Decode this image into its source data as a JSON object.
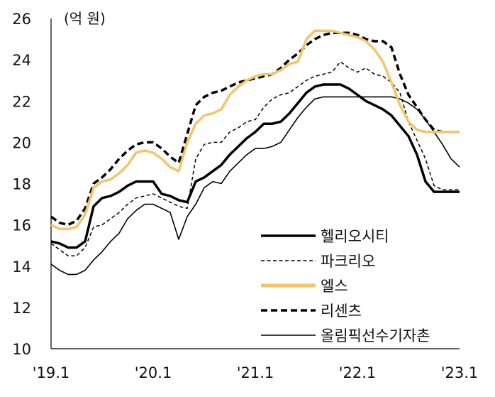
{
  "chart_data": {
    "type": "line",
    "unit_label": "(억 원)",
    "ylim": [
      10,
      26
    ],
    "yticks": [
      "26",
      "24",
      "22",
      "20",
      "18",
      "16",
      "14",
      "12",
      "10"
    ],
    "xticks": [
      "'19.1",
      "'20.1",
      "'21.1",
      "'22.1",
      "'23.1"
    ],
    "grid": false,
    "legend_position": "bottom-right",
    "x": [
      "2019-01",
      "2019-02",
      "2019-03",
      "2019-04",
      "2019-05",
      "2019-06",
      "2019-07",
      "2019-08",
      "2019-09",
      "2019-10",
      "2019-11",
      "2019-12",
      "2020-01",
      "2020-02",
      "2020-03",
      "2020-04",
      "2020-05",
      "2020-06",
      "2020-07",
      "2020-08",
      "2020-09",
      "2020-10",
      "2020-11",
      "2020-12",
      "2021-01",
      "2021-02",
      "2021-03",
      "2021-04",
      "2021-05",
      "2021-06",
      "2021-07",
      "2021-08",
      "2021-09",
      "2021-10",
      "2021-11",
      "2021-12",
      "2022-01",
      "2022-02",
      "2022-03",
      "2022-04",
      "2022-05",
      "2022-06",
      "2022-07",
      "2022-08",
      "2022-09",
      "2022-10",
      "2022-11",
      "2022-12",
      "2023-01"
    ],
    "series": [
      {
        "name": "헬리오시티",
        "color": "#000000",
        "style": "solid-thick",
        "values": [
          15.2,
          15.1,
          14.9,
          14.9,
          15.2,
          16.9,
          17.3,
          17.4,
          17.6,
          17.9,
          18.1,
          18.1,
          18.1,
          17.5,
          17.4,
          17.2,
          17.1,
          18.1,
          18.3,
          18.6,
          18.9,
          19.4,
          19.8,
          20.2,
          20.5,
          20.9,
          20.9,
          21.0,
          21.4,
          21.9,
          22.4,
          22.7,
          22.8,
          22.8,
          22.8,
          22.6,
          22.3,
          22.0,
          21.8,
          21.6,
          21.3,
          20.8,
          20.3,
          19.4,
          18.1,
          17.6,
          17.6,
          17.6,
          17.6
        ]
      },
      {
        "name": "파크리오",
        "color": "#000000",
        "style": "dashed-thin",
        "values": [
          15.1,
          14.8,
          14.5,
          14.5,
          14.9,
          15.9,
          16.0,
          16.3,
          16.6,
          17.0,
          17.3,
          17.4,
          17.5,
          17.3,
          17.1,
          16.9,
          16.8,
          19.2,
          19.9,
          20.0,
          20.0,
          20.5,
          20.7,
          21.0,
          21.1,
          21.7,
          22.1,
          22.3,
          22.4,
          22.7,
          23.0,
          23.2,
          23.3,
          23.4,
          23.9,
          23.6,
          23.4,
          23.6,
          23.3,
          23.2,
          22.9,
          22.4,
          21.0,
          20.1,
          19.2,
          17.9,
          17.7,
          17.7,
          17.7
        ]
      },
      {
        "name": "엘스",
        "color": "#F4C46A",
        "style": "solid-thick",
        "values": [
          16.0,
          15.8,
          15.8,
          15.9,
          16.5,
          17.8,
          18.1,
          18.2,
          18.5,
          18.9,
          19.5,
          19.6,
          19.5,
          19.2,
          18.8,
          18.6,
          20.0,
          20.9,
          21.3,
          21.4,
          21.6,
          22.3,
          22.7,
          23.0,
          23.2,
          23.3,
          23.3,
          23.5,
          23.8,
          23.9,
          25.0,
          25.4,
          25.4,
          25.4,
          25.3,
          25.2,
          25.1,
          24.9,
          24.5,
          23.9,
          22.9,
          21.8,
          21.0,
          20.6,
          20.5,
          20.5,
          20.5,
          20.5,
          20.5
        ]
      },
      {
        "name": "리센츠",
        "color": "#000000",
        "style": "dashed-thick",
        "values": [
          16.4,
          16.1,
          16.0,
          16.2,
          16.8,
          18.0,
          18.3,
          18.7,
          19.2,
          19.6,
          19.9,
          20.0,
          20.0,
          19.7,
          19.3,
          19.0,
          20.4,
          21.8,
          22.2,
          22.4,
          22.5,
          22.7,
          22.9,
          23.0,
          23.1,
          23.2,
          23.3,
          23.6,
          24.0,
          24.3,
          24.7,
          25.0,
          25.2,
          25.3,
          25.3,
          25.3,
          25.2,
          25.0,
          24.9,
          24.9,
          24.6,
          23.3,
          22.3,
          21.7,
          21.1,
          20.6,
          20.5,
          20.5,
          20.5
        ]
      },
      {
        "name": "올림픽선수기자촌",
        "color": "#000000",
        "style": "solid-thin",
        "values": [
          14.1,
          13.8,
          13.6,
          13.6,
          13.8,
          14.3,
          14.7,
          15.2,
          15.6,
          16.3,
          16.7,
          17.0,
          17.0,
          16.8,
          16.6,
          15.3,
          16.4,
          17.0,
          17.8,
          18.1,
          18.0,
          18.6,
          19.0,
          19.4,
          19.7,
          19.7,
          19.8,
          20.0,
          20.6,
          21.2,
          21.7,
          22.1,
          22.2,
          22.2,
          22.2,
          22.2,
          22.2,
          22.2,
          22.2,
          22.2,
          22.2,
          22.1,
          21.9,
          21.6,
          21.1,
          20.5,
          19.9,
          19.2,
          18.8
        ]
      }
    ]
  }
}
